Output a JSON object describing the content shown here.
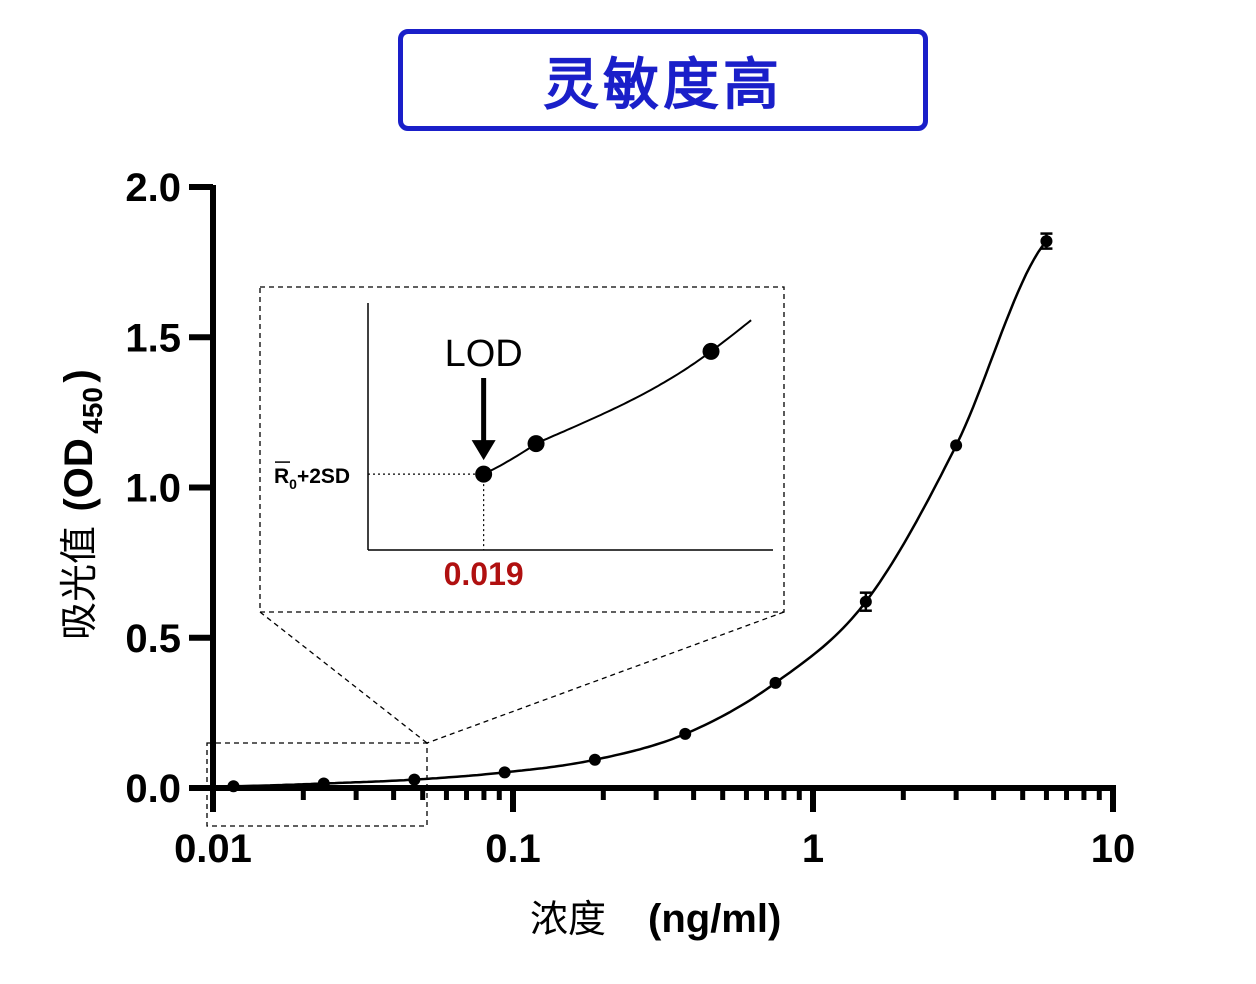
{
  "title": "灵敏度高",
  "colors": {
    "title": "#1a1fc9",
    "lod_value": "#b01010",
    "line": "#000000"
  },
  "chart_data": {
    "type": "line",
    "xscale": "log",
    "xlim": [
      0.01,
      10
    ],
    "ylim": [
      0,
      2.0
    ],
    "xticks": [
      "0.01",
      "0.1",
      "1",
      "10"
    ],
    "yticks": [
      "0.0",
      "0.5",
      "1.0",
      "1.5",
      "2.0"
    ],
    "xlabel_cn": "浓度",
    "xlabel_unit": "(ng/ml)",
    "ylabel_cn": "吸光值",
    "ylabel_main": "(OD",
    "ylabel_sub": "450",
    "ylabel_close": ")",
    "points": [
      {
        "x": 0.0117,
        "y": 0.006,
        "err": 0
      },
      {
        "x": 0.0234,
        "y": 0.015,
        "err": 0
      },
      {
        "x": 0.0469,
        "y": 0.028,
        "err": 0
      },
      {
        "x": 0.0938,
        "y": 0.052,
        "err": 0
      },
      {
        "x": 0.1875,
        "y": 0.094,
        "err": 0
      },
      {
        "x": 0.375,
        "y": 0.18,
        "err": 0
      },
      {
        "x": 0.75,
        "y": 0.35,
        "err": 0
      },
      {
        "x": 1.5,
        "y": 0.62,
        "err": 0.03
      },
      {
        "x": 3.0,
        "y": 1.14,
        "err": 0
      },
      {
        "x": 6.0,
        "y": 1.82,
        "err": 0.025
      }
    ],
    "inset": {
      "lod_label": "LOD",
      "lod_value": "0.019",
      "threshold_label": "R",
      "threshold_sub": "0",
      "threshold_rest": "+2SD"
    }
  }
}
